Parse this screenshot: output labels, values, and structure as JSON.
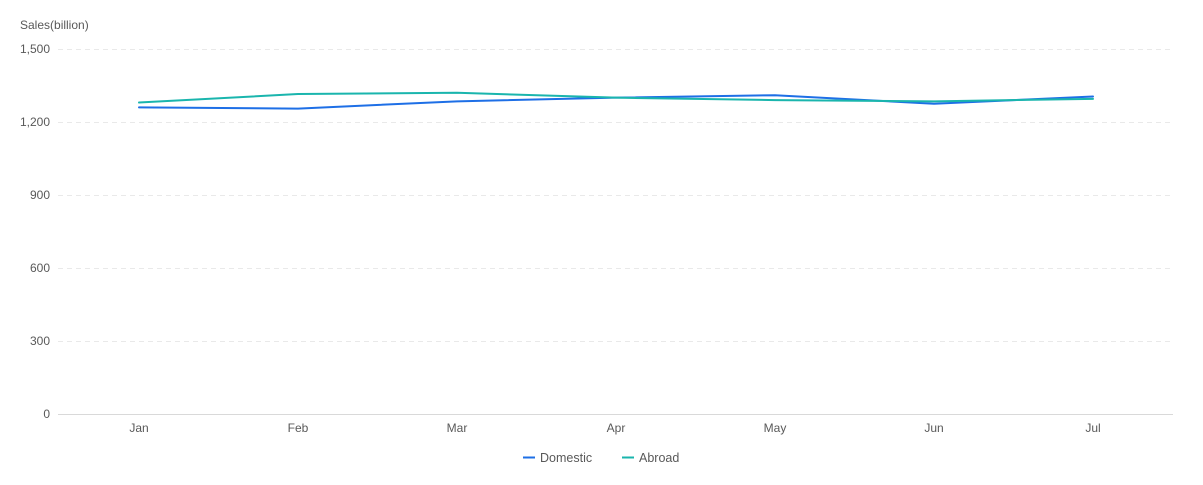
{
  "chart_data": {
    "type": "line",
    "ylabel": "Sales(billion)",
    "categories": [
      "Jan",
      "Feb",
      "Mar",
      "Apr",
      "May",
      "Jun",
      "Jul"
    ],
    "ylim": [
      0,
      1500
    ],
    "yticks": [
      0,
      300,
      600,
      900,
      1200,
      1500
    ],
    "ytick_labels": [
      "0",
      "300",
      "600",
      "900",
      "1,200",
      "1,500"
    ],
    "grid": true,
    "legend_position": "bottom",
    "series": [
      {
        "name": "Domestic",
        "color": "#1e6fe6",
        "values": [
          1260,
          1255,
          1285,
          1300,
          1310,
          1275,
          1305
        ]
      },
      {
        "name": "Abroad",
        "color": "#1ab5ad",
        "values": [
          1280,
          1315,
          1320,
          1300,
          1290,
          1285,
          1295
        ]
      }
    ]
  }
}
